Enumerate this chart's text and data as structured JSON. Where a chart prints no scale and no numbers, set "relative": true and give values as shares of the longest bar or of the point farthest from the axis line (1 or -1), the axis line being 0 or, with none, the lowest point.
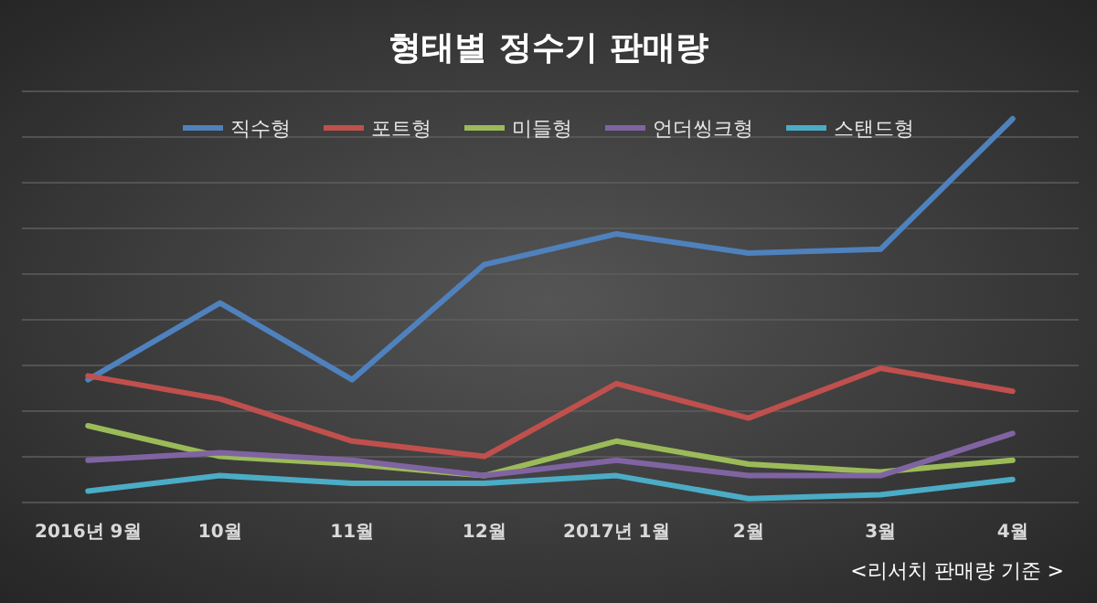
{
  "chart_data": {
    "type": "line",
    "title": "형태별 정수기 판매량",
    "relative": true,
    "grid": "y",
    "legend": "top",
    "marker": "none",
    "line_style": "solid",
    "categories": [
      "2016년 9월",
      "10월",
      "11월",
      "12월",
      "2017년 1월",
      "2월",
      "3월",
      "4월"
    ],
    "series": [
      {
        "name": "직수형",
        "color": "#4f81bd",
        "values": [
          0.32,
          0.52,
          0.32,
          0.62,
          0.7,
          0.65,
          0.66,
          1
        ]
      },
      {
        "name": "포트형",
        "color": "#c0504d",
        "values": [
          0.33,
          0.27,
          0.16,
          0.12,
          0.31,
          0.22,
          0.35,
          0.29
        ]
      },
      {
        "name": "미들형",
        "color": "#9bbb59",
        "values": [
          0.2,
          0.12,
          0.1,
          0.07,
          0.16,
          0.1,
          0.08,
          0.11
        ]
      },
      {
        "name": "언더씽크형",
        "color": "#8064a2",
        "values": [
          0.11,
          0.13,
          0.11,
          0.07,
          0.11,
          0.07,
          0.07,
          0.18
        ]
      },
      {
        "name": "스탠드형",
        "color": "#4bacc6",
        "values": [
          0.03,
          0.07,
          0.05,
          0.05,
          0.07,
          0.01,
          0.02,
          0.06
        ]
      }
    ],
    "annotations": [
      "<리서치 판매량 기준 >"
    ]
  }
}
